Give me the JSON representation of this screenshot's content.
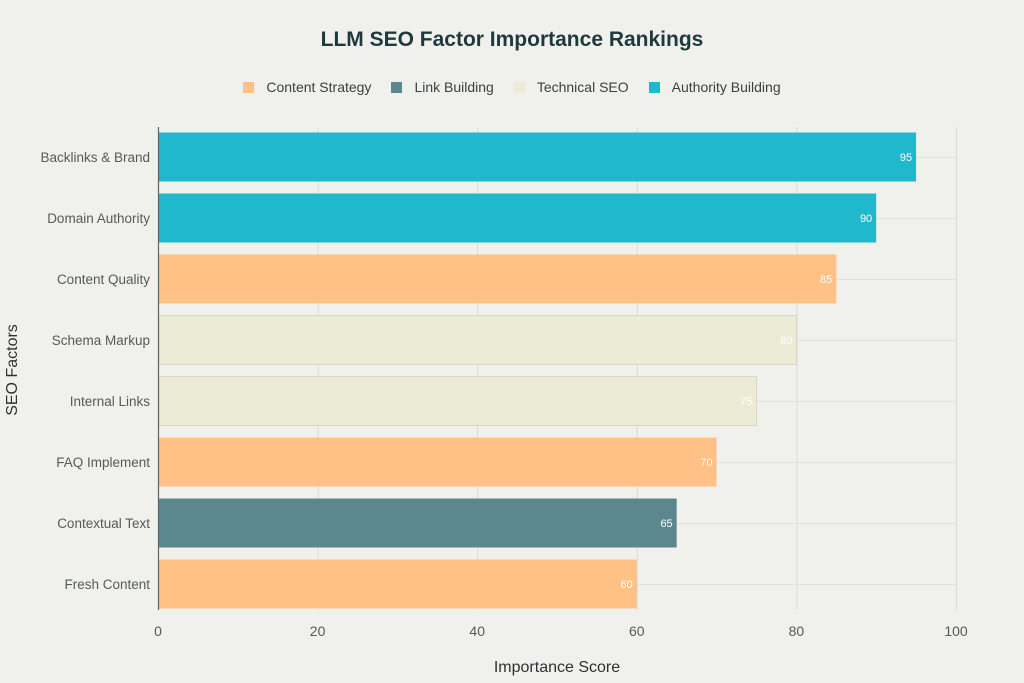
{
  "chart_data": {
    "type": "bar",
    "orientation": "horizontal",
    "title": "LLM SEO Factor Importance Rankings",
    "xlabel": "Importance Score",
    "ylabel": "SEO Factors",
    "xlim": [
      0,
      100
    ],
    "xticks": [
      0,
      20,
      40,
      60,
      80,
      100
    ],
    "grid": true,
    "legend_position": "top-center",
    "legend": [
      {
        "name": "Content Strategy",
        "color": "#ffc185"
      },
      {
        "name": "Link Building",
        "color": "#5d878f"
      },
      {
        "name": "Technical SEO",
        "color": "#ecebd5"
      },
      {
        "name": "Authority Building",
        "color": "#1fb8cd"
      }
    ],
    "categories": [
      "Backlinks & Brand",
      "Domain Authority",
      "Content Quality",
      "Schema Markup",
      "Internal Links",
      "FAQ Implement",
      "Contextual Text",
      "Fresh Content"
    ],
    "values": [
      95,
      90,
      85,
      80,
      75,
      70,
      65,
      60
    ],
    "groups": [
      "Authority Building",
      "Authority Building",
      "Content Strategy",
      "Technical SEO",
      "Technical SEO",
      "Content Strategy",
      "Link Building",
      "Content Strategy"
    ],
    "data_labels": [
      "95",
      "90",
      "85",
      "80",
      "75",
      "70",
      "65",
      "60"
    ]
  }
}
